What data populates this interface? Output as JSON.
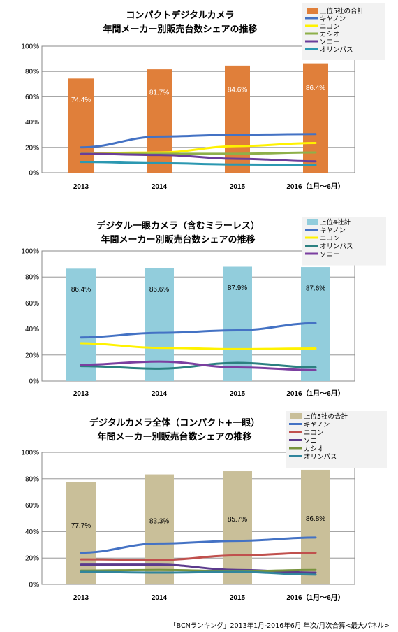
{
  "source_note": "「BCNランキング」2013年1月-2016年6月 年次/月次合算<最大パネル>",
  "chart_data": [
    {
      "type": "bar",
      "title": [
        "コンパクトデジタルカメラ",
        "年間メーカー別販売台数シェアの推移"
      ],
      "categories": [
        "2013",
        "2014",
        "2015",
        "2016（1月〜6月）"
      ],
      "ylim": [
        0,
        100
      ],
      "yticks": [
        "0%",
        "20%",
        "40%",
        "60%",
        "80%",
        "100%"
      ],
      "grid": true,
      "legend_position": "top-right",
      "bar_series": {
        "name": "上位5社の合計",
        "color": "#E07F3A",
        "label_color": "#ffffff",
        "values": [
          74.4,
          81.7,
          84.6,
          86.4
        ],
        "labels": [
          "74.4%",
          "81.7%",
          "84.6%",
          "86.4%"
        ]
      },
      "line_series": [
        {
          "name": "キヤノン",
          "color": "#4472C4",
          "values": [
            20,
            28.5,
            30,
            30.5
          ]
        },
        {
          "name": "ニコン",
          "color": "#FFF200",
          "values": [
            15.5,
            16,
            21,
            23.5
          ]
        },
        {
          "name": "カシオ",
          "color": "#8EB04A",
          "values": [
            15,
            15,
            15,
            16
          ]
        },
        {
          "name": "ソニー",
          "color": "#6A3D9A",
          "values": [
            15,
            14,
            11,
            9
          ]
        },
        {
          "name": "オリンパス",
          "color": "#2B98B1",
          "values": [
            8.5,
            7.5,
            6.5,
            6
          ]
        }
      ]
    },
    {
      "type": "bar",
      "title": [
        "デジタル一眼カメラ（含むミラーレス）",
        "年間メーカー別販売台数シェアの推移"
      ],
      "categories": [
        "2013",
        "2014",
        "2015",
        "2016（1月〜6月）"
      ],
      "ylim": [
        0,
        100
      ],
      "yticks": [
        "0%",
        "20%",
        "40%",
        "60%",
        "80%",
        "100%"
      ],
      "grid": true,
      "legend_position": "top-right",
      "bar_series": {
        "name": "上位4社計",
        "color": "#92CDDC",
        "label_color": "#000000",
        "values": [
          86.4,
          86.6,
          87.9,
          87.6
        ],
        "labels": [
          "86.4%",
          "86.6%",
          "87.9%",
          "87.6%"
        ]
      },
      "line_series": [
        {
          "name": "キヤノン",
          "color": "#4472C4",
          "values": [
            33.5,
            37,
            39,
            44.5
          ]
        },
        {
          "name": "ニコン",
          "color": "#FFF200",
          "values": [
            29,
            25.5,
            24.5,
            25
          ]
        },
        {
          "name": "オリンパス",
          "color": "#2B8080",
          "values": [
            11.5,
            9.5,
            14,
            10.5
          ]
        },
        {
          "name": "ソニー",
          "color": "#7B3FA0",
          "values": [
            12.5,
            15,
            10.5,
            8.5
          ]
        }
      ]
    },
    {
      "type": "bar",
      "title": [
        "デジタルカメラ全体（コンパクト+一眼）",
        "年間メーカー別販売台数シェアの推移"
      ],
      "categories": [
        "2013",
        "2014",
        "2015",
        "2016（1月〜6月）"
      ],
      "ylim": [
        0,
        100
      ],
      "yticks": [
        "0%",
        "20%",
        "40%",
        "60%",
        "80%",
        "100%"
      ],
      "grid": true,
      "legend_position": "top-right",
      "bar_series": {
        "name": "上位5社の合計",
        "color": "#C9BF99",
        "label_color": "#000000",
        "values": [
          77.7,
          83.3,
          85.7,
          86.8
        ],
        "labels": [
          "77.7%",
          "83.3%",
          "85.7%",
          "86.8%"
        ]
      },
      "line_series": [
        {
          "name": "キヤノン",
          "color": "#4472C4",
          "values": [
            24,
            31,
            33,
            35.5
          ]
        },
        {
          "name": "ニコン",
          "color": "#C0504D",
          "values": [
            19,
            18.5,
            22,
            24
          ]
        },
        {
          "name": "ソニー",
          "color": "#5B3A8C",
          "values": [
            15,
            15,
            11,
            9
          ]
        },
        {
          "name": "カシオ",
          "color": "#77933C",
          "values": [
            10.5,
            11,
            10,
            11
          ]
        },
        {
          "name": "オリンパス",
          "color": "#31859C",
          "values": [
            9.5,
            9,
            9.5,
            7.5
          ]
        }
      ]
    }
  ]
}
